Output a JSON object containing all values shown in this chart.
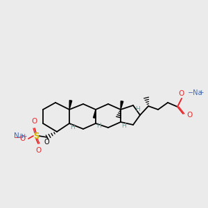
{
  "bg_color": "#ebebeb",
  "bond_color": "#000000",
  "teal_color": "#4aada8",
  "red_color": "#e8262a",
  "blue_color": "#4169b0",
  "yellow_color": "#d4b800",
  "figsize": [
    3.0,
    3.0
  ],
  "dpi": 100,
  "xlim": [
    0,
    300
  ],
  "ylim": [
    0,
    300
  ]
}
